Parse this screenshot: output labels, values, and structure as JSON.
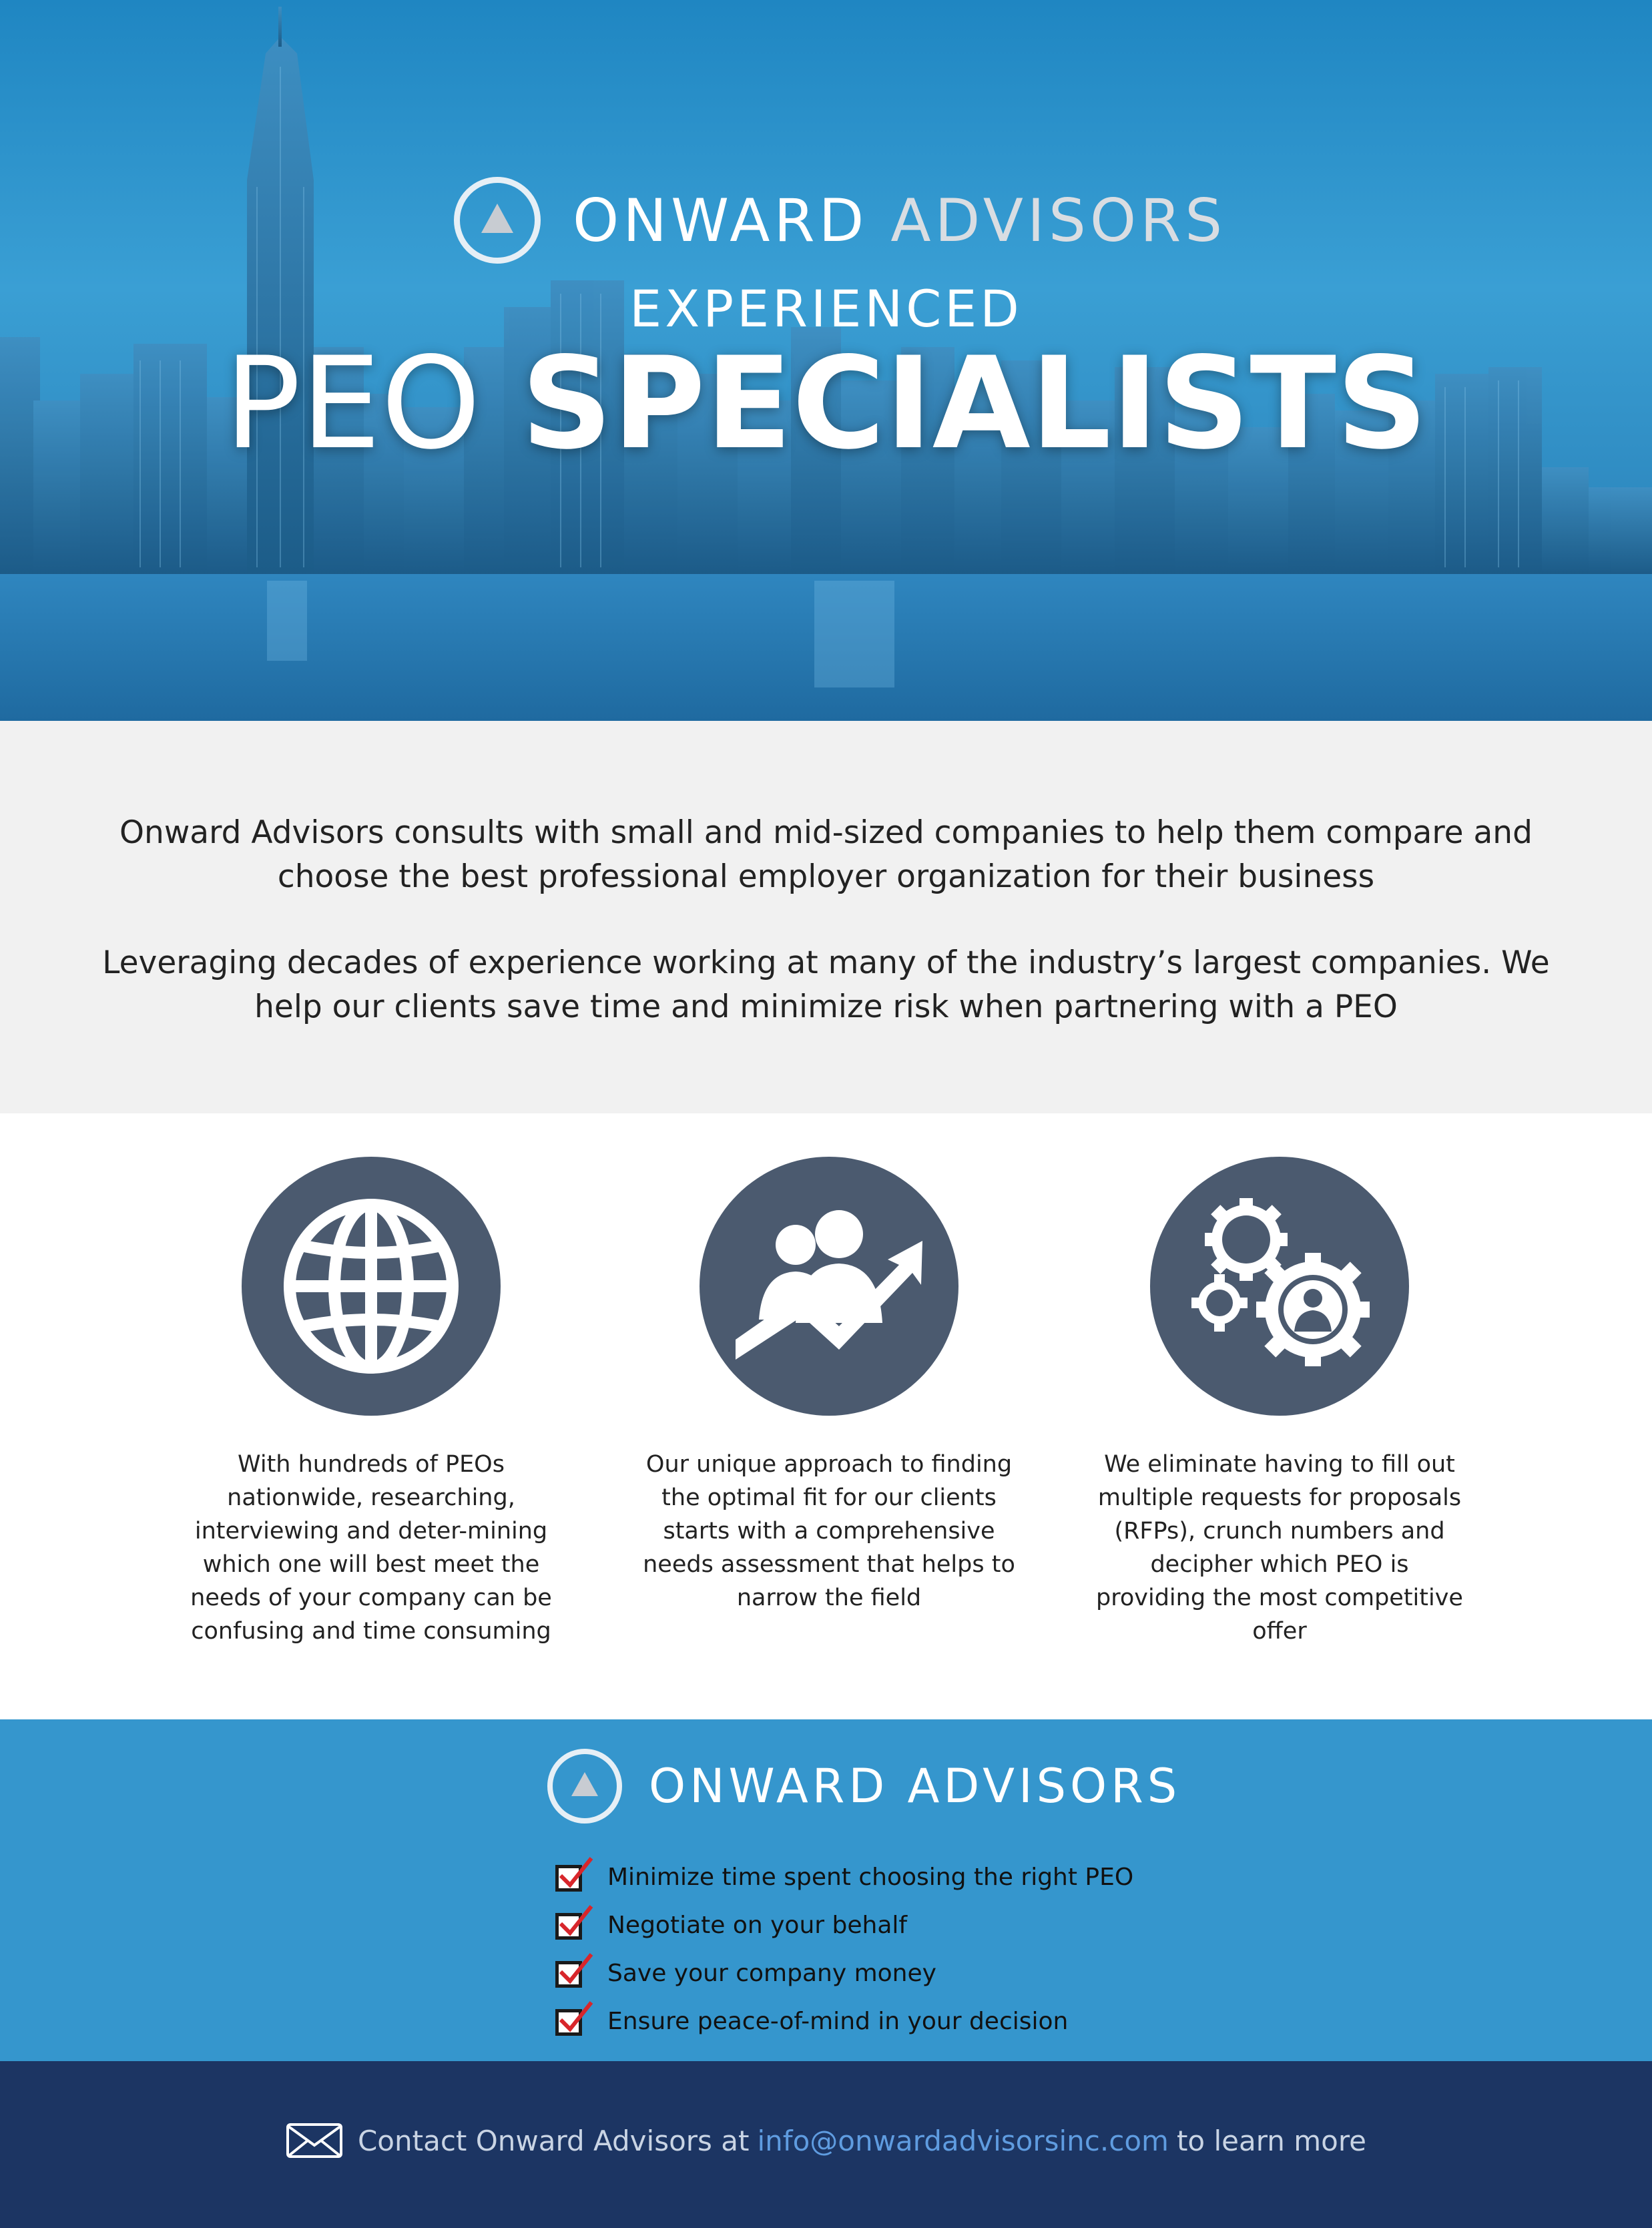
{
  "hero": {
    "brand_first": "ONWARD",
    "brand_second": "ADVISORS",
    "subtitle": "EXPERIENCED",
    "title_light": "PEO",
    "title_bold": "SPECIALISTS"
  },
  "intro": {
    "paragraph1": "Onward Advisors consults with small and mid-sized companies to help them compare and choose the best professional employer organization for their business",
    "paragraph2": "Leveraging decades of experience working at many of the industry’s largest companies. We help our clients save time and minimize risk when partnering with a PEO"
  },
  "features": [
    {
      "icon": "globe-icon",
      "text": "With hundreds of PEOs nationwide, researching, interviewing and deter-mining which one will best meet the needs of your company can be confusing and time consuming"
    },
    {
      "icon": "people-growth-icon",
      "text": "Our unique approach to finding the optimal fit for our clients starts with a comprehensive needs assessment that helps to narrow the field"
    },
    {
      "icon": "gears-person-icon",
      "text": "We eliminate having to fill out multiple requests for proposals (RFPs), crunch numbers and decipher which PEO is providing the most competitive offer"
    }
  ],
  "benefits": {
    "brand": "ONWARD ADVISORS",
    "items": [
      "Minimize time spent choosing the right PEO",
      "Negotiate on your behalf",
      "Save your company money",
      "Ensure peace-of-mind in your decision"
    ]
  },
  "footer": {
    "prefix": "Contact Onward Advisors at",
    "email": "info@onwardadvisorsinc.com",
    "suffix": "to learn more"
  },
  "colors": {
    "hero_blue": "#2b8fcb",
    "intro_bg": "#f1f1f1",
    "icon_circle": "#4b5a6f",
    "benefits_bg": "#3596cd",
    "footer_bg": "#1c3563",
    "email_link": "#5f9ce0",
    "check_red": "#d8262b"
  }
}
